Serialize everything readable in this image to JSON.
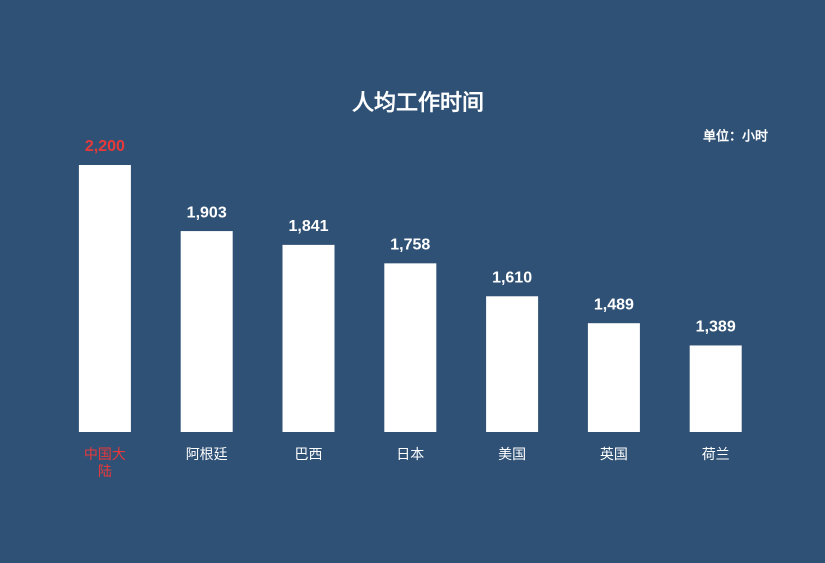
{
  "chart_data": {
    "type": "bar",
    "title": "人均工作时间",
    "unit_note": "单位：小时",
    "categories": [
      "中国大陆",
      "阿根廷",
      "巴西",
      "日本",
      "美国",
      "英国",
      "荷兰"
    ],
    "values": [
      2200,
      1903,
      1841,
      1758,
      1610,
      1489,
      1389
    ],
    "value_labels": [
      "2,200",
      "1,903",
      "1,841",
      "1,758",
      "1,610",
      "1,489",
      "1,389"
    ],
    "color": "#ffffff",
    "label_colors": [
      "#e8393a",
      "#ffffff",
      "#ffffff",
      "#ffffff",
      "#ffffff",
      "#ffffff",
      "#ffffff"
    ],
    "background": "#2f5175",
    "ylim": [
      1000,
      2200
    ]
  }
}
